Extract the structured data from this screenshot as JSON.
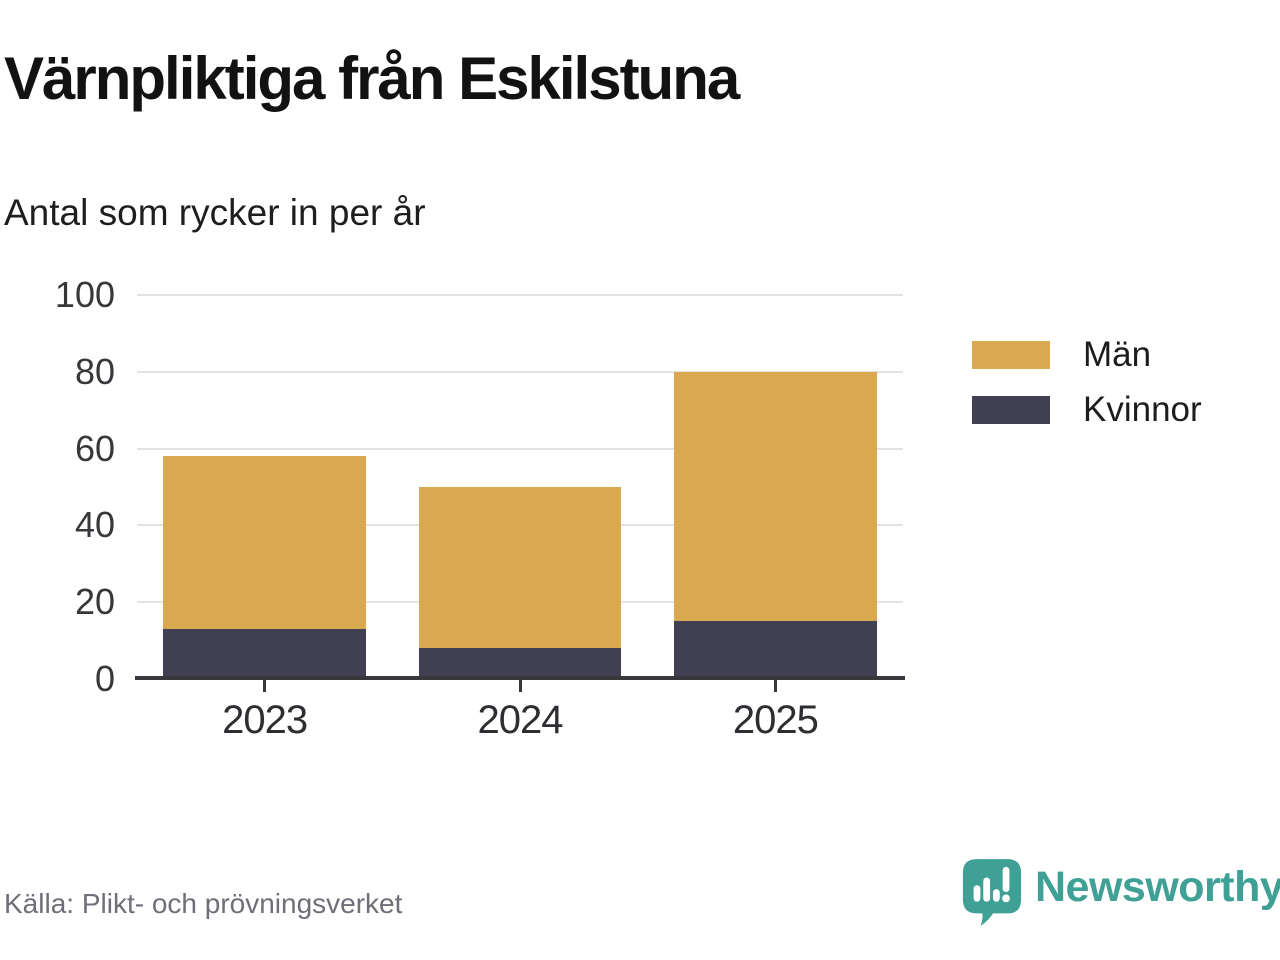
{
  "title": "Värnpliktiga från Eskilstuna",
  "subtitle": "Antal som rycker in per år",
  "source": "Källa: Plikt- och prövningsverket",
  "brand": {
    "name": "Newsworthy",
    "icon": "speech-bubble-bar-chart-icon",
    "color": "#3fa096"
  },
  "colors": {
    "man_bar": "#d9a851",
    "kvinnor_bar": "#413f52",
    "axis": "#38383c",
    "gridline": "#e3e3e3",
    "title_text": "#121212",
    "source_text": "#6e6f78"
  },
  "chart_data": {
    "type": "bar",
    "stacked": true,
    "title": "Värnpliktiga från Eskilstuna",
    "subtitle": "Antal som rycker in per år",
    "categories": [
      "2023",
      "2024",
      "2025"
    ],
    "series": [
      {
        "name": "Män",
        "color": "#d9a851",
        "values": [
          45,
          42,
          65
        ]
      },
      {
        "name": "Kvinnor",
        "color": "#413f52",
        "values": [
          13,
          8,
          15
        ]
      }
    ],
    "stack_order": [
      "Kvinnor",
      "Män"
    ],
    "totals": [
      58,
      50,
      80
    ],
    "xlabel": "",
    "ylabel": "",
    "ylim": [
      0,
      100
    ],
    "yticks": [
      0,
      20,
      40,
      60,
      80,
      100
    ],
    "grid": true,
    "legend_position": "right",
    "bar_width_fraction": 0.795
  }
}
